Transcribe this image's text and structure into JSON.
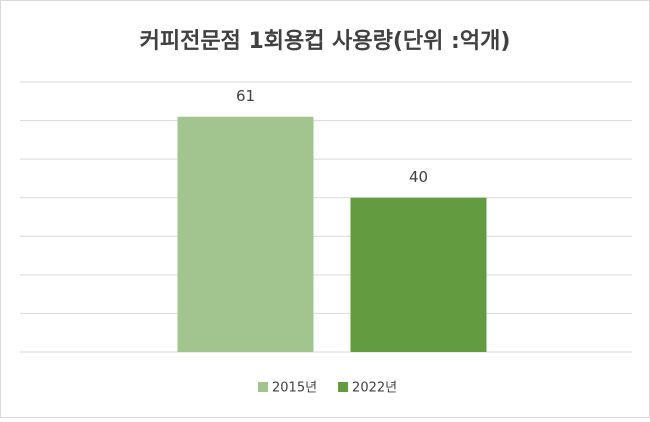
{
  "chart_data": {
    "type": "bar",
    "title": "커피전문점 1회용컵 사용량(단위 :억개)",
    "categories": [
      null
    ],
    "series": [
      {
        "name": "2015년",
        "color": "#a2c48e",
        "values": [
          61
        ]
      },
      {
        "name": "2022년",
        "color": "#629b40",
        "values": [
          40
        ]
      }
    ],
    "ylim": [
      0,
      70
    ],
    "yticks": [
      0,
      10,
      20,
      30,
      40,
      50,
      60,
      70
    ],
    "grid": true,
    "legend": "bottom"
  }
}
